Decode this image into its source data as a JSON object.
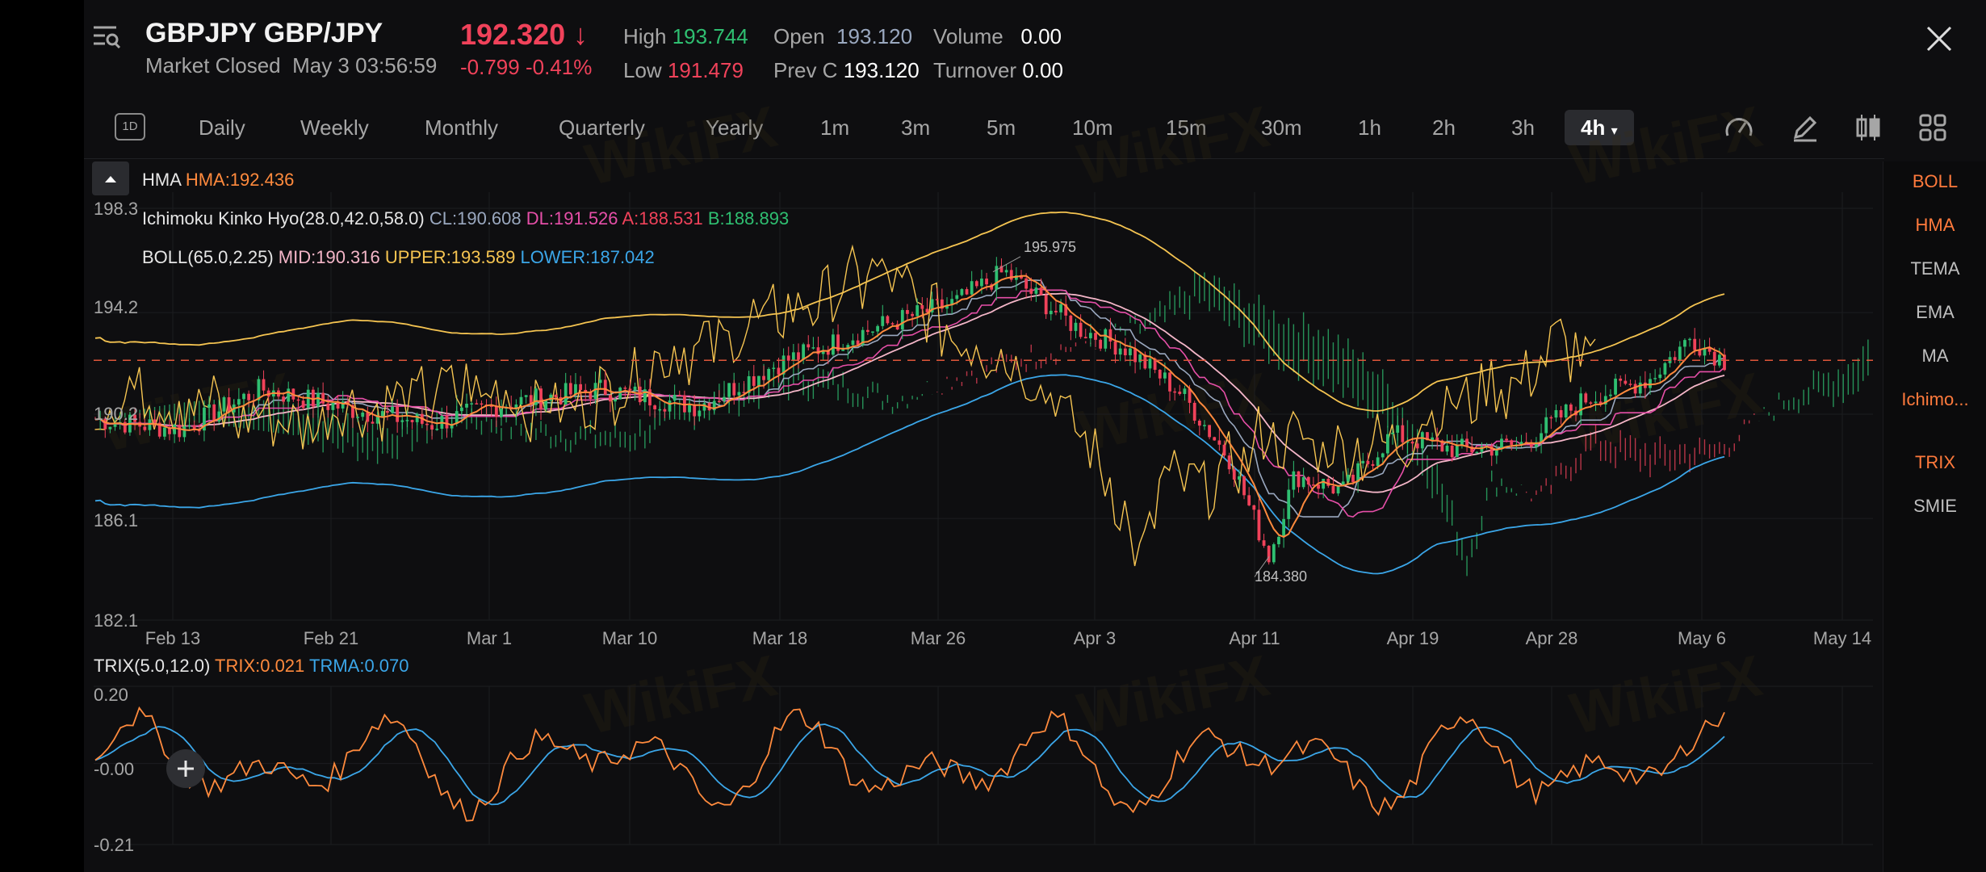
{
  "header": {
    "symbol": "GBPJPY",
    "pair": "GBP/JPY",
    "market_status": "Market Closed",
    "timestamp": "May 3 03:56:59",
    "price": "192.320",
    "price_arrow": "↓",
    "change": "-0.799",
    "change_pct": "-0.41%",
    "stats": [
      {
        "label": "High",
        "value": "193.744",
        "color": "#2fbf71"
      },
      {
        "label": "Low",
        "value": "191.479",
        "color": "#f0425a"
      },
      {
        "label": "Open",
        "value": "193.120",
        "color": "#9aa8bf"
      },
      {
        "label": "Prev C",
        "value": "193.120",
        "color": "#ffffff"
      },
      {
        "label": "Volume",
        "value": "0.00",
        "color": "#ffffff"
      },
      {
        "label": "Turnover",
        "value": "0.00",
        "color": "#ffffff"
      }
    ]
  },
  "toolbar": {
    "badge": "1D",
    "timeframes": [
      "Daily",
      "Weekly",
      "Monthly",
      "Quarterly",
      "Yearly",
      "1m",
      "3m",
      "5m",
      "10m",
      "15m",
      "30m",
      "1h",
      "2h",
      "3h"
    ],
    "active": "4h",
    "active_caret": "▾",
    "icons": [
      "speedometer-icon",
      "pencil-icon",
      "candlestick-icon",
      "grid-icon"
    ]
  },
  "indicators_panel": [
    {
      "label": "BOLL",
      "on": true
    },
    {
      "label": "HMA",
      "on": true
    },
    {
      "label": "TEMA",
      "on": false
    },
    {
      "label": "EMA",
      "on": false
    },
    {
      "label": "MA",
      "on": false
    },
    {
      "label": "Ichimo...",
      "on": true
    },
    {
      "label": "TRIX",
      "on": true
    },
    {
      "label": "SMIE",
      "on": false
    }
  ],
  "legends": {
    "hma": {
      "name": "HMA",
      "value": "HMA:192.436"
    },
    "ichimoku": {
      "name": "Ichimoku Kinko Hyo(28.0,42.0,58.0)",
      "cl": "CL:190.608",
      "dl": "DL:191.526",
      "a": "A:188.531",
      "b": "B:188.893"
    },
    "boll": {
      "name": "BOLL(65.0,2.25)",
      "mid": "MID:190.316",
      "upper": "UPPER:193.589",
      "lower": "LOWER:187.042"
    },
    "trix": {
      "name": "TRIX(5.0,12.0)",
      "trix": "TRIX:0.021",
      "trma": "TRMA:0.070"
    }
  },
  "colors": {
    "up": "#2fbf71",
    "down": "#f0425a",
    "hma": "#ff8a3d",
    "ichimoku_cl": "#9aa8bf",
    "ichimoku_dl": "#e64fa8",
    "ichimoku_a": "#f0425a",
    "ichimoku_b": "#2fbf71",
    "boll_mid": "#f4b6c8",
    "boll_upper": "#f5c451",
    "boll_lower": "#3ba6e8",
    "trix": "#ff8a3d",
    "trma": "#3ba6e8"
  },
  "main_axis": {
    "labels": [
      "198.3",
      "194.2",
      "190.2",
      "186.1",
      "182.1"
    ],
    "values": [
      198.3,
      194.2,
      190.2,
      186.1,
      182.1
    ]
  },
  "trix_axis": {
    "labels": [
      "0.20",
      "-0.00",
      "-0.21"
    ],
    "values": [
      0.2,
      0.0,
      -0.21
    ]
  },
  "dates": [
    "Feb 13",
    "Feb 21",
    "Mar 1",
    "Mar 10",
    "Mar 18",
    "Mar 26",
    "Apr 3",
    "Apr 11",
    "Apr 19",
    "Apr 28",
    "May 6",
    "May 14"
  ],
  "annotations": {
    "max": "195.975",
    "min": "184.380"
  },
  "current_price": 192.32,
  "watermark": "WikiFX"
}
